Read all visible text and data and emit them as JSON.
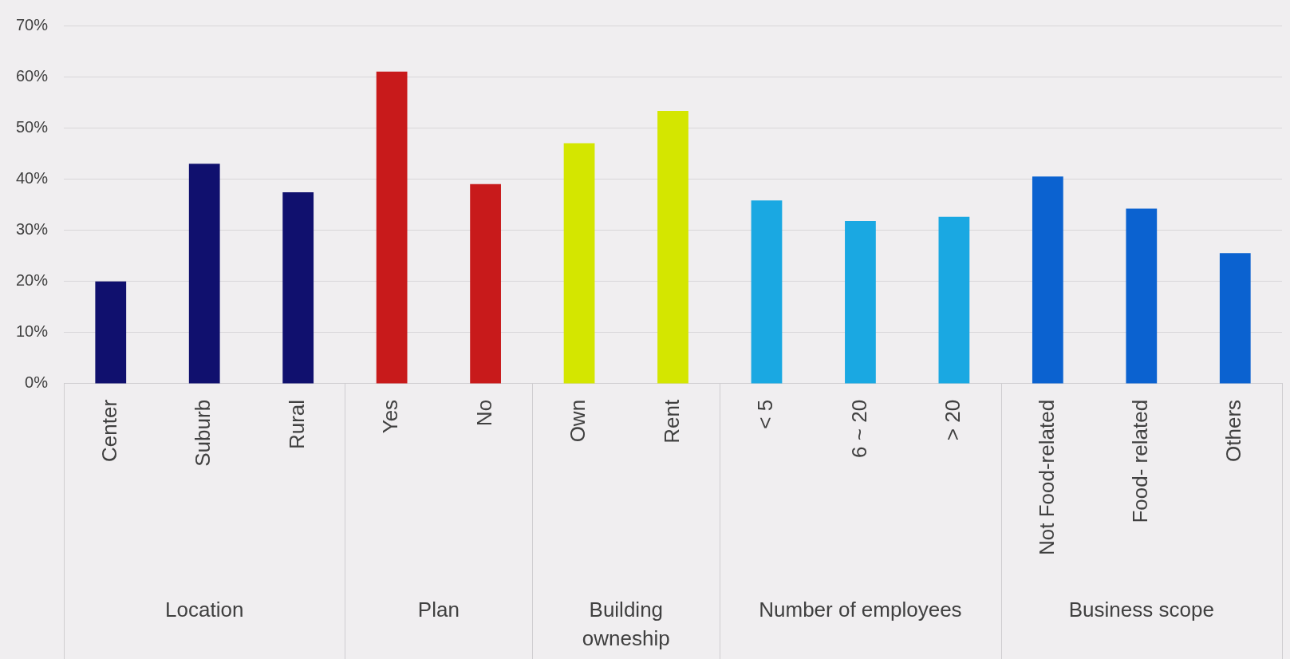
{
  "chart_data": {
    "type": "bar",
    "categories": [
      "Center",
      "Suburb",
      "Rural",
      "Yes",
      "No",
      "Own",
      "Rent",
      "< 5",
      "6 ~ 20",
      "> 20",
      "Not Food-related",
      "Food- related",
      "Others"
    ],
    "series": [
      {
        "color": "#10106e",
        "values": [
          20,
          43,
          37.4,
          null,
          null,
          null,
          null,
          null,
          null,
          null,
          null,
          null,
          null
        ]
      },
      {
        "color": "#c81a1b",
        "values": [
          null,
          null,
          null,
          61,
          39,
          null,
          null,
          null,
          null,
          null,
          null,
          null,
          null
        ]
      },
      {
        "color": "#d4e600",
        "values": [
          null,
          null,
          null,
          null,
          null,
          47,
          53.3,
          null,
          null,
          null,
          null,
          null,
          null
        ]
      },
      {
        "color": "#1aa8e2",
        "values": [
          null,
          null,
          null,
          null,
          null,
          null,
          null,
          35.8,
          31.8,
          32.6,
          null,
          null,
          null
        ]
      },
      {
        "color": "#0b62d0",
        "values": [
          null,
          null,
          null,
          null,
          null,
          null,
          null,
          null,
          null,
          null,
          40.5,
          34.2,
          25.5
        ]
      }
    ],
    "annotations": [
      "Location",
      "Plan",
      "Building owneship",
      "Number of employees",
      "Business scope"
    ],
    "ylim": [
      0,
      70
    ],
    "yticks": [
      {
        "value": 0,
        "label": "0%"
      },
      {
        "value": 10,
        "label": "10%"
      },
      {
        "value": 20,
        "label": "20%"
      },
      {
        "value": 30,
        "label": "30%"
      },
      {
        "value": 40,
        "label": "40%"
      },
      {
        "value": 50,
        "label": "50%"
      },
      {
        "value": 60,
        "label": "60%"
      },
      {
        "value": 70,
        "label": "70%"
      }
    ],
    "grid": "y",
    "legend": false
  }
}
